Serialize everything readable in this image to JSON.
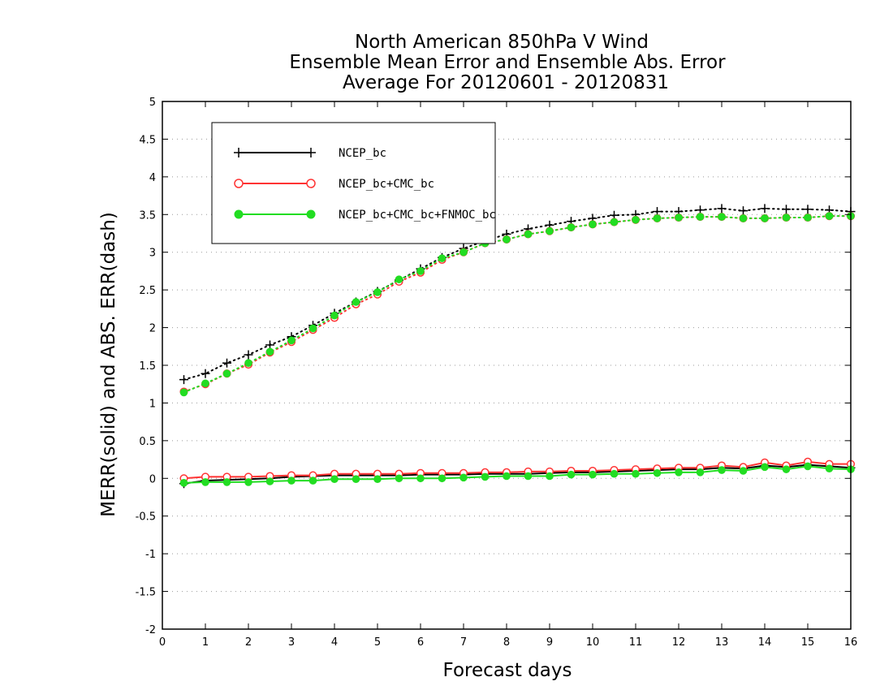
{
  "chart_data": {
    "type": "line",
    "title": [
      "North American 850hPa V Wind",
      "Ensemble Mean Error and Ensemble Abs. Error",
      "Average For 20120601 - 20120831"
    ],
    "xlabel": "Forecast days",
    "ylabel": "MERR(solid) and ABS. ERR(dash)",
    "xlim": [
      0,
      16
    ],
    "ylim": [
      -2,
      5
    ],
    "xticks": [
      0,
      1,
      2,
      3,
      4,
      5,
      6,
      7,
      8,
      9,
      10,
      11,
      12,
      13,
      14,
      15,
      16
    ],
    "yticks": [
      -2,
      -1.5,
      -1,
      -0.5,
      0,
      0.5,
      1,
      1.5,
      2,
      2.5,
      3,
      3.5,
      4,
      4.5,
      5
    ],
    "ytick_labels": [
      "-2",
      "-1.5",
      "-1",
      "-0.5",
      "0",
      "0.5",
      "1",
      "1.5",
      "2",
      "2.5",
      "3",
      "3.5",
      "4",
      "4.5",
      "5"
    ],
    "grid": "horizontal dotted",
    "legend_position": "top-left",
    "x": [
      0.5,
      1,
      1.5,
      2,
      2.5,
      3,
      3.5,
      4,
      4.5,
      5,
      5.5,
      6,
      6.5,
      7,
      7.5,
      8,
      8.5,
      9,
      9.5,
      10,
      10.5,
      11,
      11.5,
      12,
      12.5,
      13,
      13.5,
      14,
      14.5,
      15,
      15.5,
      16
    ],
    "series": [
      {
        "name": "NCEP_bc",
        "color": "#000000",
        "marker": "plus",
        "merr": [
          -0.07,
          -0.03,
          -0.02,
          -0.01,
          0.0,
          0.02,
          0.03,
          0.04,
          0.04,
          0.04,
          0.04,
          0.05,
          0.05,
          0.05,
          0.06,
          0.06,
          0.06,
          0.07,
          0.08,
          0.08,
          0.09,
          0.1,
          0.11,
          0.12,
          0.12,
          0.14,
          0.13,
          0.17,
          0.15,
          0.18,
          0.16,
          0.14
        ],
        "abs_err": [
          1.31,
          1.39,
          1.53,
          1.64,
          1.77,
          1.88,
          2.03,
          2.19,
          2.34,
          2.48,
          2.63,
          2.78,
          2.93,
          3.05,
          3.15,
          3.24,
          3.31,
          3.36,
          3.41,
          3.45,
          3.49,
          3.5,
          3.54,
          3.54,
          3.56,
          3.58,
          3.55,
          3.58,
          3.57,
          3.57,
          3.56,
          3.54
        ]
      },
      {
        "name": "NCEP_bc+CMC_bc",
        "color": "#ff3333",
        "marker": "open-circle",
        "merr": [
          0.0,
          0.02,
          0.02,
          0.02,
          0.03,
          0.04,
          0.04,
          0.06,
          0.06,
          0.06,
          0.06,
          0.07,
          0.07,
          0.07,
          0.08,
          0.08,
          0.09,
          0.09,
          0.1,
          0.1,
          0.11,
          0.12,
          0.13,
          0.14,
          0.14,
          0.17,
          0.15,
          0.21,
          0.17,
          0.22,
          0.19,
          0.19
        ],
        "abs_err": [
          1.15,
          1.25,
          1.39,
          1.51,
          1.67,
          1.81,
          1.97,
          2.13,
          2.31,
          2.44,
          2.61,
          2.73,
          2.9,
          3.0,
          3.12,
          3.17,
          3.24,
          3.28,
          3.33,
          3.37,
          3.4,
          3.43,
          3.45,
          3.46,
          3.47,
          3.47,
          3.45,
          3.45,
          3.46,
          3.46,
          3.48,
          3.48
        ]
      },
      {
        "name": "NCEP_bc+CMC_bc+FNMOC_bc",
        "color": "#22dd22",
        "marker": "filled-circle",
        "merr": [
          -0.06,
          -0.05,
          -0.05,
          -0.05,
          -0.04,
          -0.03,
          -0.03,
          -0.01,
          -0.01,
          -0.01,
          0.0,
          0.0,
          0.0,
          0.01,
          0.02,
          0.03,
          0.03,
          0.03,
          0.05,
          0.05,
          0.06,
          0.06,
          0.07,
          0.08,
          0.08,
          0.11,
          0.1,
          0.15,
          0.12,
          0.16,
          0.13,
          0.12
        ],
        "abs_err": [
          1.14,
          1.26,
          1.39,
          1.53,
          1.68,
          1.83,
          1.99,
          2.16,
          2.34,
          2.47,
          2.64,
          2.75,
          2.92,
          3.0,
          3.12,
          3.17,
          3.24,
          3.28,
          3.33,
          3.37,
          3.4,
          3.43,
          3.45,
          3.46,
          3.47,
          3.47,
          3.45,
          3.45,
          3.46,
          3.46,
          3.48,
          3.48
        ]
      }
    ]
  }
}
